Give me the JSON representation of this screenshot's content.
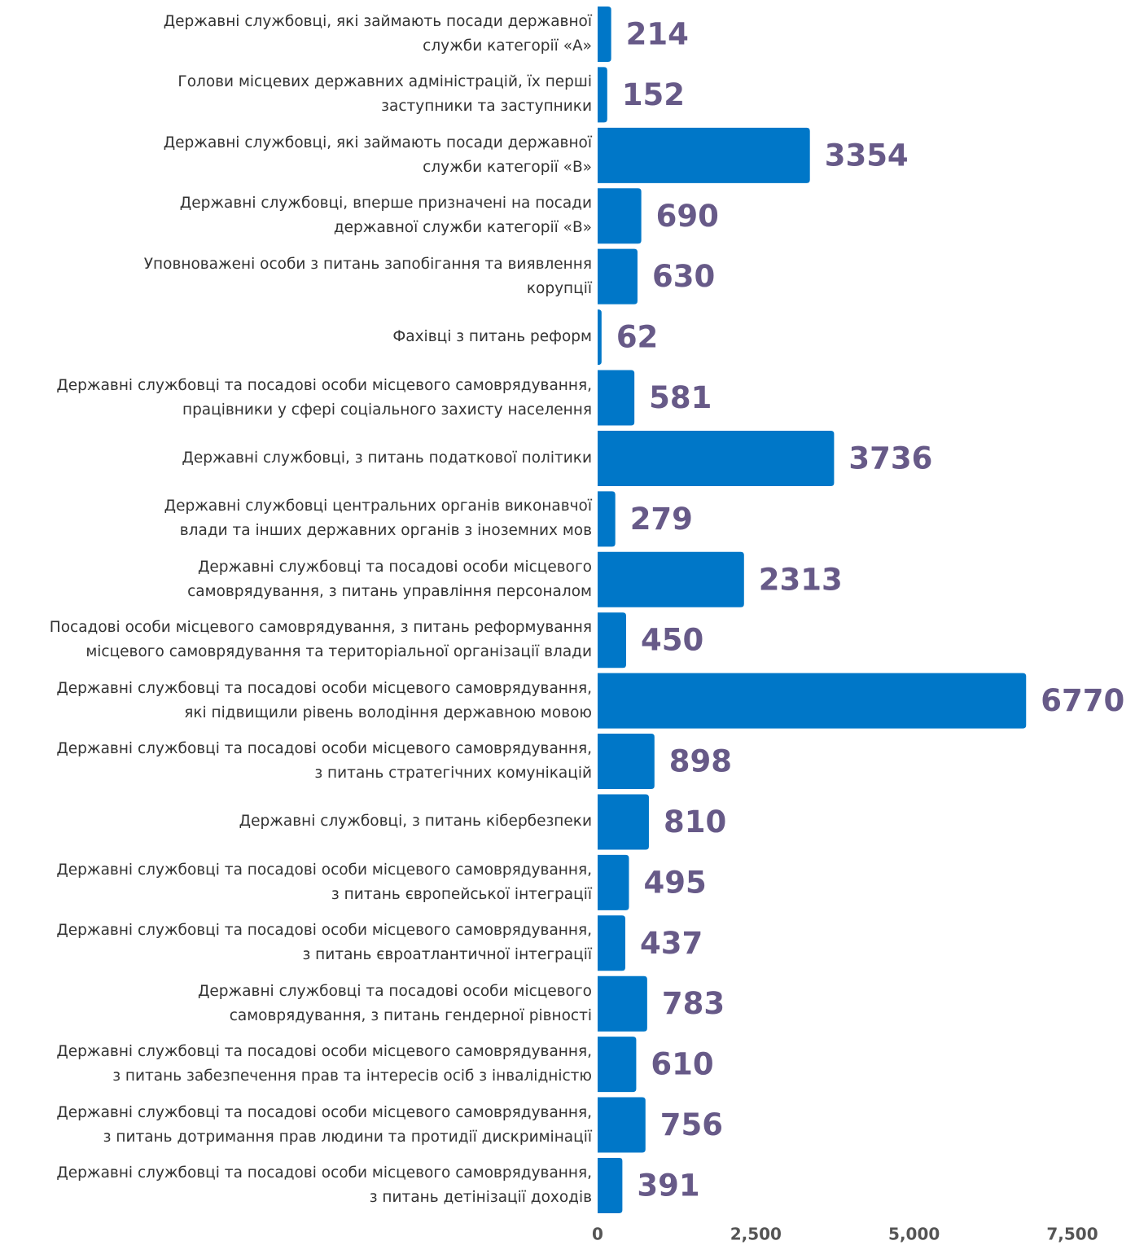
{
  "chart_data": {
    "type": "barh",
    "categories": [
      "Державні службовці, які займають посади державної\nслужби категорії «А»",
      "Голови місцевих державних адміністрацій, їх перші\nзаступники та заступники",
      "Державні службовці, які займають посади державної\nслужби категорії «В»",
      "Державні службовці, вперше призначені на посади\nдержавної служби категорії «В»",
      "Уповноважені особи з питань запобігання та виявлення\nкорупції",
      "Фахівці з питань реформ",
      "Державні службовці та посадові особи місцевого самоврядування,\nпрацівники у сфері соціального захисту населення",
      "Державні службовці, з питань податкової політики",
      "Державні службовці центральних органів виконавчої\nвлади та інших державних органів з іноземних мов",
      "Державні службовці та посадові особи місцевого\nсамоврядування, з питань управління персоналом",
      "Посадові особи місцевого самоврядування, з питань реформування\nмісцевого самоврядування та територіальної організації влади",
      "Державні службовці та посадові особи місцевого самоврядування,\nякі підвищили рівень володіння державною мовою",
      "Державні службовці та посадові особи місцевого самоврядування,\nз питань стратегічних комунікацій",
      "Державні службовці, з питань кібербезпеки",
      "Державні службовці та посадові особи місцевого самоврядування,\nз питань європейської інтеграції",
      "Державні службовці та посадові особи місцевого самоврядування,\nз питань євроатлантичної інтеграції",
      "Державні службовці та посадові особи місцевого\nсамоврядування, з питань гендерної рівності",
      "Державні службовці та посадові особи місцевого самоврядування,\nз питань забезпечення прав та інтересів осіб з інвалідністю",
      "Державні службовці та посадові особи місцевого самоврядування,\nз питань дотримання прав людини та протидії дискримінації",
      "Державні службовці та посадові особи місцевого самоврядування,\nз питань детінізації доходів"
    ],
    "values": [
      214,
      152,
      3354,
      690,
      630,
      62,
      581,
      3736,
      279,
      2313,
      450,
      6770,
      898,
      810,
      495,
      437,
      783,
      610,
      756,
      391
    ],
    "color": "#0077c8",
    "xlim": [
      0,
      7500
    ],
    "xticks": [
      0,
      {
        "value": 2500,
        "label": "2,500"
      },
      {
        "value": 5000,
        "label": "5,000"
      },
      {
        "value": 7500,
        "label": "7,500"
      }
    ]
  }
}
